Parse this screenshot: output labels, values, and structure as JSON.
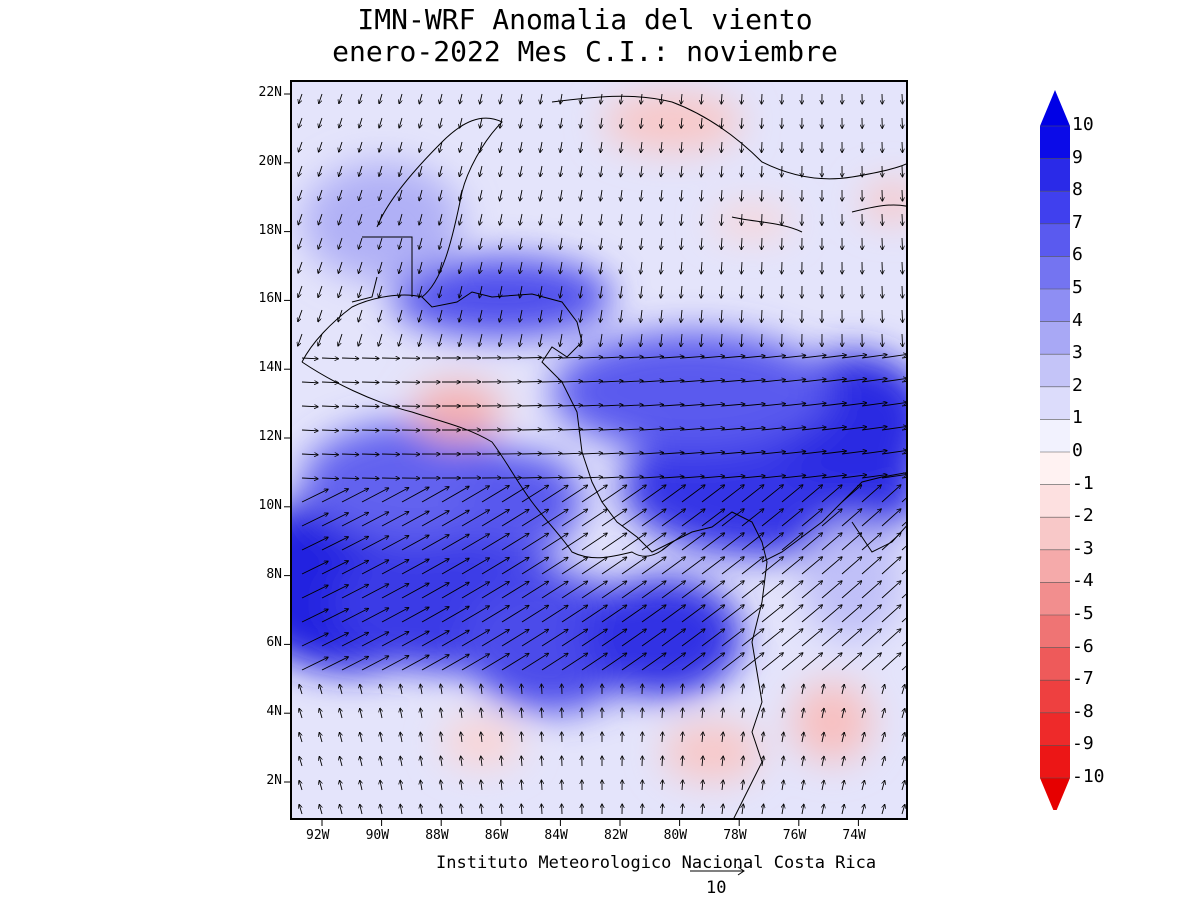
{
  "title": {
    "line1": "IMN-WRF Anomalia del viento",
    "line2": "enero-2022 Mes C.I.: noviembre"
  },
  "credit": "Instituto Meteorologico Nacional Costa Rica",
  "reference_vector": {
    "label": "10",
    "magnitude": 10
  },
  "map": {
    "lon_ticks": [
      "92W",
      "90W",
      "88W",
      "86W",
      "84W",
      "82W",
      "80W",
      "78W",
      "76W",
      "74W"
    ],
    "lat_ticks": [
      "22N",
      "20N",
      "18N",
      "16N",
      "14N",
      "12N",
      "10N",
      "8N",
      "6N",
      "4N",
      "2N"
    ]
  },
  "colorbar": {
    "levels": [
      "10",
      "9",
      "8",
      "7",
      "6",
      "5",
      "4",
      "3",
      "2",
      "1",
      "0",
      "-1",
      "-2",
      "-3",
      "-4",
      "-5",
      "-6",
      "-7",
      "-8",
      "-9",
      "-10"
    ],
    "colors": [
      "#0b0be8",
      "#2a2ae8",
      "#4040ee",
      "#5a5aef",
      "#7474f1",
      "#8e8ef3",
      "#a8a8f5",
      "#c4c4f8",
      "#dcdcfb",
      "#f2f2fe",
      "#fff2f2",
      "#fde0e0",
      "#f8c8c8",
      "#f5aaaa",
      "#f28e8e",
      "#ef7474",
      "#ee5a5a",
      "#ee4040",
      "#ee2a2a",
      "#ec1616"
    ],
    "top_arrow_color": "#0000e6",
    "bottom_arrow_color": "#e60000"
  }
}
